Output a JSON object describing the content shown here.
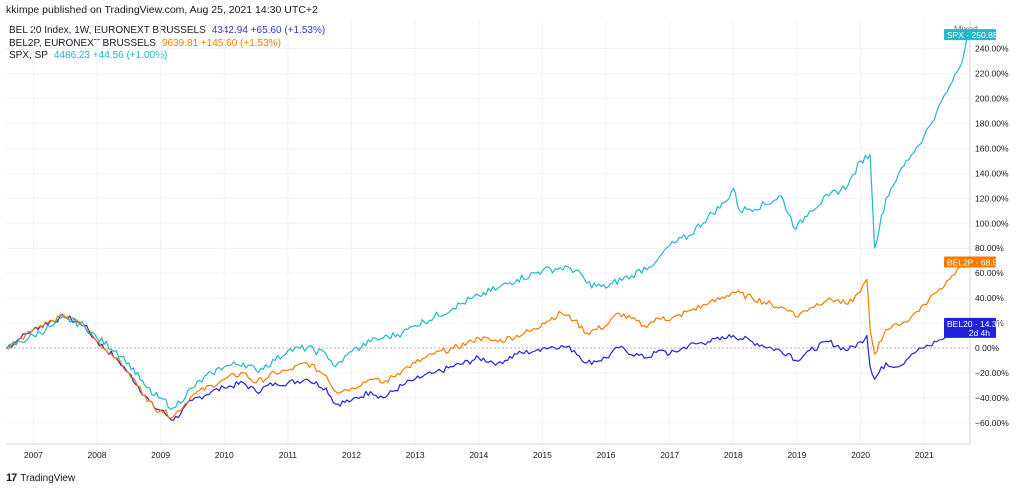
{
  "header": {
    "publisher": "kkimpe published on TradingView.com, Aug 25, 2021 14:30 UTC+2"
  },
  "legend": [
    {
      "symbol": "BEL 20 Index, 1W, EURONEXT BRUSSELS",
      "values": "4342.94  +65.60 (+1.53%)",
      "color": "#3333cc"
    },
    {
      "symbol": "BEL2P, EURONEXT BRUSSELS",
      "values": "9639.81  +145.60 (+1.53%)",
      "color": "#f57c00"
    },
    {
      "symbol": "SPX, SP",
      "values": "4486.23  +44.56 (+1.00%)",
      "color": "#22b8c8"
    }
  ],
  "scale_mode": "Mixed",
  "tags": [
    {
      "label": "SPX · 250.88%",
      "series": "SPX",
      "color": "#22b8c8"
    },
    {
      "label": "BEL2P · 68.50%",
      "series": "BEL2P",
      "color": "#f57c00"
    },
    {
      "label": "BEL20 · 14.35%",
      "sublabel": "2d 4h",
      "series": "BEL20",
      "color": "#2222dd"
    }
  ],
  "footer": {
    "brand": "TradingView",
    "logo": "17"
  },
  "chart_data": {
    "type": "line",
    "x_unit": "year",
    "xlim": [
      2006.57,
      2021.72
    ],
    "ylim": [
      -77,
      263
    ],
    "yticks": [
      -60,
      -40,
      -20,
      0,
      20,
      40,
      60,
      80,
      100,
      120,
      140,
      160,
      180,
      200,
      220,
      240
    ],
    "ytick_labels": [
      "−60.00%",
      "−40.00%",
      "−20.00%",
      "0.00%",
      "20.00%",
      "40.00%",
      "60.00%",
      "80.00%",
      "100.00%",
      "120.00%",
      "140.00%",
      "160.00%",
      "180.00%",
      "200.00%",
      "220.00%",
      "240.00%"
    ],
    "xticks": [
      "2007",
      "2008",
      "2009",
      "2010",
      "2011",
      "2012",
      "2013",
      "2014",
      "2015",
      "2016",
      "2017",
      "2018",
      "2019",
      "2020",
      "2021"
    ],
    "grid": true,
    "series": [
      {
        "name": "SPX",
        "color": "#22b8c8",
        "x": [
          2006.58,
          2006.8,
          2007.0,
          2007.3,
          2007.5,
          2007.8,
          2008.0,
          2008.3,
          2008.5,
          2008.75,
          2008.9,
          2009.0,
          2009.2,
          2009.5,
          2009.8,
          2010.0,
          2010.3,
          2010.5,
          2010.8,
          2011.0,
          2011.3,
          2011.6,
          2011.75,
          2012.0,
          2012.3,
          2012.5,
          2012.8,
          2013.0,
          2013.3,
          2013.6,
          2013.9,
          2014.0,
          2014.3,
          2014.6,
          2014.9,
          2015.0,
          2015.4,
          2015.6,
          2015.7,
          2016.0,
          2016.1,
          2016.4,
          2016.8,
          2017.0,
          2017.3,
          2017.6,
          2017.9,
          2018.0,
          2018.1,
          2018.5,
          2018.75,
          2018.98,
          2019.2,
          2019.5,
          2019.8,
          2020.0,
          2020.15,
          2020.22,
          2020.4,
          2020.6,
          2020.8,
          2021.0,
          2021.2,
          2021.4,
          2021.6,
          2021.68
        ],
        "y": [
          -1,
          5,
          10,
          18,
          24,
          18,
          8,
          -2,
          -12,
          -30,
          -38,
          -40,
          -48,
          -32,
          -20,
          -15,
          -12,
          -18,
          -10,
          -2,
          0,
          -5,
          -15,
          -3,
          5,
          8,
          12,
          18,
          25,
          32,
          40,
          42,
          48,
          55,
          60,
          62,
          65,
          60,
          52,
          48,
          52,
          58,
          70,
          82,
          90,
          105,
          118,
          128,
          110,
          115,
          122,
          95,
          110,
          122,
          130,
          150,
          155,
          80,
          120,
          140,
          155,
          170,
          190,
          210,
          230,
          250.88
        ]
      },
      {
        "name": "BEL2P",
        "color": "#f57c00",
        "x": [
          2006.58,
          2006.8,
          2007.0,
          2007.3,
          2007.5,
          2007.8,
          2008.0,
          2008.3,
          2008.5,
          2008.75,
          2008.9,
          2009.0,
          2009.2,
          2009.5,
          2009.8,
          2010.0,
          2010.3,
          2010.5,
          2010.8,
          2011.0,
          2011.3,
          2011.6,
          2011.75,
          2012.0,
          2012.3,
          2012.5,
          2012.8,
          2013.0,
          2013.3,
          2013.6,
          2013.9,
          2014.0,
          2014.3,
          2014.6,
          2014.9,
          2015.0,
          2015.3,
          2015.5,
          2015.7,
          2016.0,
          2016.2,
          2016.6,
          2016.9,
          2017.0,
          2017.3,
          2017.6,
          2017.9,
          2018.0,
          2018.3,
          2018.6,
          2018.9,
          2018.98,
          2019.2,
          2019.5,
          2019.8,
          2020.0,
          2020.1,
          2020.15,
          2020.22,
          2020.4,
          2020.6,
          2020.8,
          2021.0,
          2021.2,
          2021.4,
          2021.6,
          2021.68
        ],
        "y": [
          0,
          8,
          15,
          22,
          25,
          18,
          5,
          -8,
          -20,
          -38,
          -48,
          -50,
          -55,
          -38,
          -30,
          -25,
          -20,
          -28,
          -20,
          -18,
          -12,
          -22,
          -35,
          -32,
          -25,
          -28,
          -18,
          -12,
          -5,
          0,
          5,
          8,
          5,
          10,
          15,
          20,
          28,
          22,
          12,
          18,
          28,
          18,
          25,
          22,
          30,
          35,
          42,
          45,
          40,
          35,
          30,
          25,
          32,
          40,
          35,
          45,
          55,
          15,
          -5,
          15,
          18,
          25,
          35,
          45,
          55,
          65,
          68.5
        ]
      },
      {
        "name": "BEL20",
        "color": "#2222dd",
        "x": [
          2006.58,
          2006.8,
          2007.0,
          2007.3,
          2007.5,
          2007.8,
          2008.0,
          2008.3,
          2008.5,
          2008.75,
          2008.9,
          2009.0,
          2009.2,
          2009.5,
          2009.8,
          2010.0,
          2010.3,
          2010.5,
          2010.8,
          2011.0,
          2011.3,
          2011.6,
          2011.75,
          2012.0,
          2012.3,
          2012.5,
          2012.8,
          2013.0,
          2013.3,
          2013.6,
          2013.9,
          2014.0,
          2014.3,
          2014.6,
          2014.9,
          2015.0,
          2015.3,
          2015.5,
          2015.7,
          2016.0,
          2016.2,
          2016.6,
          2016.9,
          2017.0,
          2017.3,
          2017.6,
          2017.9,
          2018.0,
          2018.3,
          2018.6,
          2018.9,
          2018.98,
          2019.2,
          2019.5,
          2019.8,
          2020.0,
          2020.1,
          2020.15,
          2020.22,
          2020.4,
          2020.6,
          2020.8,
          2021.0,
          2021.2,
          2021.4,
          2021.6,
          2021.68
        ],
        "y": [
          0,
          8,
          15,
          22,
          25,
          18,
          5,
          -8,
          -20,
          -38,
          -48,
          -50,
          -58,
          -42,
          -35,
          -32,
          -28,
          -35,
          -28,
          -28,
          -25,
          -32,
          -45,
          -42,
          -35,
          -40,
          -30,
          -25,
          -20,
          -15,
          -10,
          -8,
          -12,
          -5,
          -2,
          0,
          2,
          -2,
          -12,
          -8,
          0,
          -8,
          -2,
          -5,
          2,
          5,
          8,
          10,
          5,
          0,
          -5,
          -10,
          -2,
          5,
          -2,
          5,
          10,
          -15,
          -25,
          -12,
          -15,
          -5,
          0,
          5,
          10,
          12,
          14.35
        ]
      }
    ]
  }
}
